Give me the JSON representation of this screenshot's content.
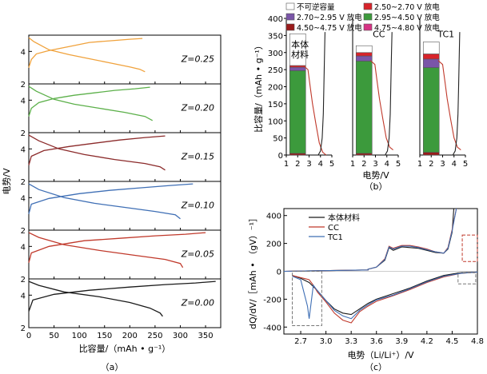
{
  "panel_labels": {
    "a": "（a）",
    "b": "（b）",
    "c": "（c）"
  },
  "colors": {
    "black": "#1a1a1a",
    "red": "#c0392b",
    "blue": "#3f6fb5",
    "orange": "#f0a23c",
    "green": "#5cb04a",
    "darkred": "#8b2a2a",
    "bar_green": "#3c9a3c",
    "bar_purple": "#7a55a8",
    "bar_red": "#d8232a",
    "bar_darkred": "#9a1b1b",
    "bar_magenta": "#d63384",
    "box_gray": "#777777"
  },
  "chart_data": [
    {
      "id": "a",
      "type": "line",
      "xlabel": "比容量/（mAh • g⁻¹）",
      "ylabel": "电势/V",
      "xlim": [
        0,
        380
      ],
      "xticks": [
        0,
        50,
        100,
        150,
        200,
        250,
        300,
        350
      ],
      "panels": [
        {
          "label": "Z=0.25",
          "color": "orange",
          "ylim": [
            2,
            5
          ],
          "yticks": [
            2,
            4
          ],
          "charge": [
            [
              0,
              3.0
            ],
            [
              5,
              3.5
            ],
            [
              15,
              3.85
            ],
            [
              40,
              4.05
            ],
            [
              80,
              4.3
            ],
            [
              120,
              4.55
            ],
            [
              160,
              4.65
            ],
            [
              200,
              4.75
            ],
            [
              225,
              4.8
            ]
          ],
          "discharge": [
            [
              0,
              4.85
            ],
            [
              10,
              4.6
            ],
            [
              40,
              4.1
            ],
            [
              80,
              3.8
            ],
            [
              120,
              3.55
            ],
            [
              160,
              3.3
            ],
            [
              200,
              3.05
            ],
            [
              220,
              2.9
            ],
            [
              230,
              2.75
            ]
          ]
        },
        {
          "label": "Z=0.20",
          "color": "green",
          "ylim": [
            2,
            5
          ],
          "yticks": [
            2,
            4
          ],
          "charge": [
            [
              0,
              3.0
            ],
            [
              5,
              3.5
            ],
            [
              20,
              3.85
            ],
            [
              50,
              4.1
            ],
            [
              90,
              4.3
            ],
            [
              130,
              4.45
            ],
            [
              170,
              4.6
            ],
            [
              210,
              4.7
            ],
            [
              240,
              4.8
            ]
          ],
          "discharge": [
            [
              0,
              4.85
            ],
            [
              15,
              4.55
            ],
            [
              50,
              4.05
            ],
            [
              90,
              3.75
            ],
            [
              140,
              3.5
            ],
            [
              190,
              3.25
            ],
            [
              230,
              3.0
            ],
            [
              245,
              2.75
            ]
          ]
        },
        {
          "label": "Z=0.15",
          "color": "darkred",
          "ylim": [
            2,
            5
          ],
          "yticks": [
            2,
            4
          ],
          "charge": [
            [
              0,
              3.0
            ],
            [
              5,
              3.55
            ],
            [
              30,
              3.9
            ],
            [
              80,
              4.15
            ],
            [
              130,
              4.35
            ],
            [
              180,
              4.55
            ],
            [
              230,
              4.7
            ],
            [
              270,
              4.8
            ]
          ],
          "discharge": [
            [
              0,
              4.85
            ],
            [
              20,
              4.5
            ],
            [
              60,
              4.0
            ],
            [
              110,
              3.65
            ],
            [
              170,
              3.35
            ],
            [
              230,
              3.1
            ],
            [
              260,
              2.9
            ],
            [
              270,
              2.7
            ]
          ]
        },
        {
          "label": "Z=0.10",
          "color": "blue",
          "ylim": [
            2,
            5
          ],
          "yticks": [
            2,
            4
          ],
          "charge": [
            [
              0,
              3.0
            ],
            [
              5,
              3.6
            ],
            [
              40,
              3.95
            ],
            [
              100,
              4.25
            ],
            [
              160,
              4.45
            ],
            [
              220,
              4.6
            ],
            [
              280,
              4.75
            ],
            [
              325,
              4.85
            ]
          ],
          "discharge": [
            [
              0,
              4.85
            ],
            [
              20,
              4.5
            ],
            [
              70,
              4.0
            ],
            [
              130,
              3.65
            ],
            [
              190,
              3.4
            ],
            [
              250,
              3.15
            ],
            [
              290,
              2.95
            ],
            [
              300,
              2.7
            ]
          ]
        },
        {
          "label": "Z=0.05",
          "color": "red",
          "ylim": [
            2,
            5
          ],
          "yticks": [
            2,
            4
          ],
          "charge": [
            [
              0,
              3.0
            ],
            [
              5,
              3.6
            ],
            [
              40,
              4.0
            ],
            [
              110,
              4.35
            ],
            [
              180,
              4.5
            ],
            [
              250,
              4.65
            ],
            [
              310,
              4.75
            ],
            [
              350,
              4.85
            ]
          ],
          "discharge": [
            [
              0,
              4.85
            ],
            [
              20,
              4.55
            ],
            [
              70,
              4.1
            ],
            [
              140,
              3.75
            ],
            [
              210,
              3.45
            ],
            [
              270,
              3.2
            ],
            [
              300,
              2.95
            ],
            [
              305,
              2.7
            ]
          ]
        },
        {
          "label": "Z=0.00",
          "color": "black",
          "ylim": [
            2,
            5
          ],
          "yticks": [
            2,
            4
          ],
          "charge": [
            [
              0,
              3.0
            ],
            [
              8,
              3.7
            ],
            [
              50,
              4.05
            ],
            [
              120,
              4.3
            ],
            [
              200,
              4.5
            ],
            [
              270,
              4.65
            ],
            [
              330,
              4.75
            ],
            [
              370,
              4.85
            ]
          ],
          "discharge": [
            [
              0,
              4.85
            ],
            [
              20,
              4.6
            ],
            [
              70,
              4.2
            ],
            [
              140,
              3.9
            ],
            [
              200,
              3.55
            ],
            [
              240,
              3.2
            ],
            [
              260,
              2.9
            ],
            [
              265,
              2.7
            ]
          ]
        }
      ]
    },
    {
      "id": "b",
      "type": "bar",
      "ylabel": "比容量/（mAh • g⁻¹）",
      "xlabel": "电势/V",
      "ylim": [
        0,
        400
      ],
      "yticks": [
        0,
        50,
        100,
        150,
        200,
        250,
        300,
        350,
        400
      ],
      "xlim": [
        1,
        5
      ],
      "xticks": [
        1,
        2,
        3,
        4,
        5
      ],
      "legend": [
        {
          "label": "不可逆容量",
          "color": "#ffffff"
        },
        {
          "label": "2.50~2.70 V 放电",
          "color": "bar_red"
        },
        {
          "label": "2.70~2.95 V 放电",
          "color": "bar_purple"
        },
        {
          "label": "2.95~4.50 V 放电",
          "color": "bar_green"
        },
        {
          "label": "4.50~4.75 V 放电",
          "color": "bar_darkred"
        },
        {
          "label": "4.75~4.80 V 放电",
          "color": "bar_magenta"
        }
      ],
      "samples": [
        {
          "name": "本体材料",
          "stack": [
            {
              "c": "bar_darkred",
              "v": 5
            },
            {
              "c": "bar_green",
              "v": 242
            },
            {
              "c": "bar_purple",
              "v": 10
            },
            {
              "c": "bar_red",
              "v": 5
            },
            {
              "c": "white",
              "v": 93
            }
          ]
        },
        {
          "name": "CC",
          "stack": [
            {
              "c": "bar_darkred",
              "v": 5
            },
            {
              "c": "bar_green",
              "v": 270
            },
            {
              "c": "bar_purple",
              "v": 15
            },
            {
              "c": "bar_red",
              "v": 10
            },
            {
              "c": "white",
              "v": 20
            }
          ]
        },
        {
          "name": "TC1",
          "stack": [
            {
              "c": "bar_darkred",
              "v": 8
            },
            {
              "c": "bar_green",
              "v": 248
            },
            {
              "c": "bar_purple",
              "v": 25
            },
            {
              "c": "bar_red",
              "v": 15
            },
            {
              "c": "white",
              "v": 35
            }
          ]
        }
      ]
    },
    {
      "id": "c",
      "type": "line",
      "xlabel": "电势（Li/Li⁺）/V",
      "ylabel": "dQ/dV/［mAh • （gV）⁻¹］",
      "xlim": [
        2.5,
        4.8
      ],
      "xticks": [
        2.7,
        3.0,
        3.3,
        3.6,
        3.9,
        4.2,
        4.5,
        4.8
      ],
      "ylim": [
        -450,
        450
      ],
      "yticks": [
        -400,
        -200,
        0,
        200,
        400
      ],
      "series": [
        {
          "name": "本体材料",
          "color": "black",
          "charge": [
            [
              3.5,
              15
            ],
            [
              3.6,
              30
            ],
            [
              3.7,
              80
            ],
            [
              3.75,
              170
            ],
            [
              3.8,
              150
            ],
            [
              3.9,
              175
            ],
            [
              4.0,
              170
            ],
            [
              4.1,
              165
            ],
            [
              4.2,
              150
            ],
            [
              4.3,
              135
            ],
            [
              4.4,
              130
            ],
            [
              4.45,
              160
            ],
            [
              4.5,
              280
            ],
            [
              4.52,
              450
            ]
          ],
          "discharge": [
            [
              4.8,
              -5
            ],
            [
              4.6,
              -10
            ],
            [
              4.4,
              -30
            ],
            [
              4.2,
              -70
            ],
            [
              4.0,
              -120
            ],
            [
              3.8,
              -160
            ],
            [
              3.6,
              -200
            ],
            [
              3.5,
              -230
            ],
            [
              3.4,
              -270
            ],
            [
              3.3,
              -310
            ],
            [
              3.2,
              -300
            ],
            [
              3.1,
              -270
            ],
            [
              3.0,
              -210
            ],
            [
              2.9,
              -140
            ],
            [
              2.8,
              -80
            ],
            [
              2.7,
              -50
            ],
            [
              2.6,
              -30
            ]
          ]
        },
        {
          "name": "CC",
          "color": "red",
          "charge": [
            [
              3.5,
              15
            ],
            [
              3.6,
              30
            ],
            [
              3.7,
              90
            ],
            [
              3.75,
              180
            ],
            [
              3.8,
              165
            ],
            [
              3.9,
              185
            ],
            [
              4.0,
              185
            ],
            [
              4.1,
              175
            ],
            [
              4.2,
              160
            ],
            [
              4.3,
              140
            ],
            [
              4.4,
              130
            ],
            [
              4.45,
              170
            ],
            [
              4.5,
              300
            ],
            [
              4.55,
              450
            ]
          ],
          "discharge": [
            [
              4.8,
              -5
            ],
            [
              4.6,
              -15
            ],
            [
              4.4,
              -40
            ],
            [
              4.2,
              -80
            ],
            [
              4.0,
              -130
            ],
            [
              3.8,
              -175
            ],
            [
              3.6,
              -215
            ],
            [
              3.5,
              -250
            ],
            [
              3.4,
              -290
            ],
            [
              3.3,
              -370
            ],
            [
              3.2,
              -350
            ],
            [
              3.1,
              -300
            ],
            [
              3.0,
              -220
            ],
            [
              2.9,
              -150
            ],
            [
              2.85,
              -100
            ],
            [
              2.8,
              -60
            ],
            [
              2.7,
              -45
            ],
            [
              2.6,
              -30
            ]
          ]
        },
        {
          "name": "TC1",
          "color": "blue",
          "charge": [
            [
              3.5,
              15
            ],
            [
              3.6,
              30
            ],
            [
              3.7,
              85
            ],
            [
              3.75,
              175
            ],
            [
              3.8,
              160
            ],
            [
              3.9,
              180
            ],
            [
              4.0,
              180
            ],
            [
              4.1,
              170
            ],
            [
              4.2,
              155
            ],
            [
              4.3,
              140
            ],
            [
              4.4,
              130
            ],
            [
              4.45,
              165
            ],
            [
              4.5,
              290
            ],
            [
              4.55,
              450
            ]
          ],
          "discharge": [
            [
              4.8,
              -5
            ],
            [
              4.6,
              -15
            ],
            [
              4.4,
              -35
            ],
            [
              4.2,
              -75
            ],
            [
              4.0,
              -125
            ],
            [
              3.8,
              -170
            ],
            [
              3.6,
              -205
            ],
            [
              3.5,
              -240
            ],
            [
              3.4,
              -280
            ],
            [
              3.3,
              -340
            ],
            [
              3.2,
              -320
            ],
            [
              3.1,
              -280
            ],
            [
              3.0,
              -210
            ],
            [
              2.9,
              -140
            ],
            [
              2.85,
              -100
            ],
            [
              2.8,
              -340
            ],
            [
              2.78,
              -250
            ],
            [
              2.7,
              -60
            ],
            [
              2.6,
              -35
            ]
          ]
        }
      ]
    }
  ]
}
